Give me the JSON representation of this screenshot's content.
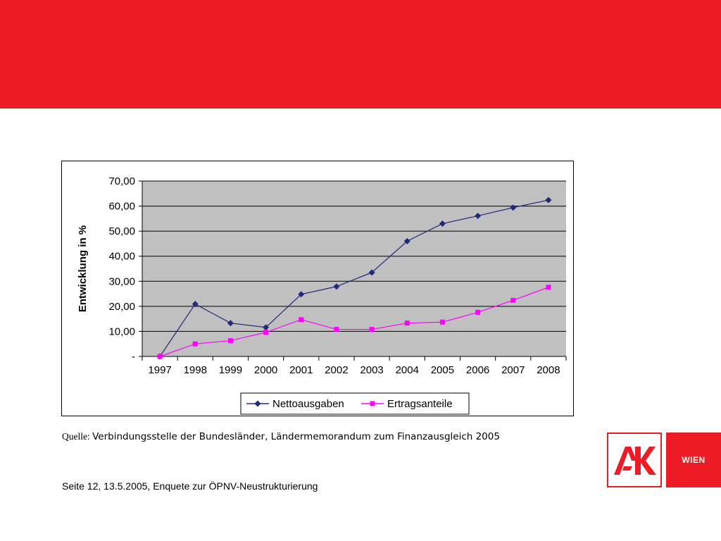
{
  "header": {
    "band_color": "#ed1c24"
  },
  "chart_data": {
    "type": "line",
    "categories": [
      "1997",
      "1998",
      "1999",
      "2000",
      "2001",
      "2002",
      "2003",
      "2004",
      "2005",
      "2006",
      "2007",
      "2008"
    ],
    "series": [
      {
        "name": "Nettoausgaben",
        "color": "#1f2a7a",
        "marker": "diamond",
        "values": [
          0,
          20.9,
          13.3,
          11.6,
          24.8,
          27.9,
          33.5,
          46.0,
          53.0,
          56.1,
          59.4,
          62.4
        ]
      },
      {
        "name": "Ertragsanteile",
        "color": "#ff00ff",
        "marker": "square",
        "values": [
          0,
          5.0,
          6.3,
          9.6,
          14.7,
          10.8,
          10.8,
          13.3,
          13.7,
          17.6,
          22.4,
          27.6
        ]
      }
    ],
    "ylabel": "Entwicklung in %",
    "ylim": [
      0,
      70
    ],
    "y_ticks": [
      "-",
      "10,00",
      "20,00",
      "30,00",
      "40,00",
      "50,00",
      "60,00",
      "70,00"
    ],
    "y_tick_values": [
      0,
      10,
      20,
      30,
      40,
      50,
      60,
      70
    ],
    "plot_background": "#c0c0c0",
    "grid": true,
    "legend": "bottom"
  },
  "source": {
    "label": "Quelle: ",
    "text": "Verbindungsstelle der Bundesländer, Ländermemorandum zum Finanzausgleich 2005"
  },
  "footer": {
    "text": "Seite 12, 13.5.2005, Enquete zur ÖPNV-Neustrukturierung"
  },
  "logo": {
    "text": "AK",
    "wien": "WIEN"
  }
}
